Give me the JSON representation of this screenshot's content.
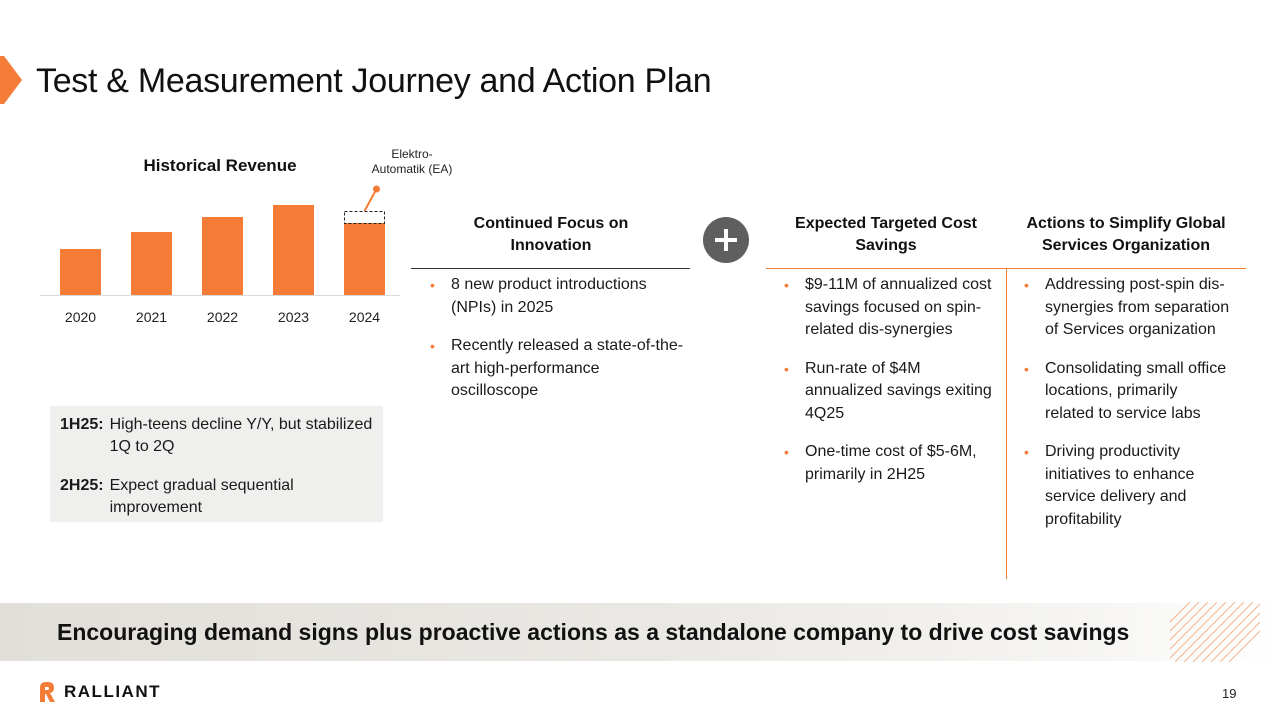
{
  "slide": {
    "title": "Test & Measurement Journey and Action Plan",
    "page_number": "19",
    "accent_color": "#f47c36"
  },
  "chart_data": {
    "type": "bar",
    "title": "Historical Revenue",
    "categories": [
      "2020",
      "2021",
      "2022",
      "2023",
      "2024"
    ],
    "values": [
      46,
      63,
      78,
      90,
      72
    ],
    "annotation": {
      "category": "2024",
      "label_line1": "Elektro-",
      "label_line2": "Automatik (EA)",
      "value_with_ea": 84
    },
    "ylim": [
      0,
      100
    ],
    "xlabel": "",
    "ylabel": ""
  },
  "outlook": [
    {
      "key": "1H25:",
      "text": "High-teens decline Y/Y, but stabilized 1Q to 2Q"
    },
    {
      "key": "2H25:",
      "text": "Expect gradual sequential improvement"
    }
  ],
  "columns": {
    "innovation": {
      "header": "Continued Focus on Innovation",
      "bullets": [
        "8 new product introductions (NPIs) in 2025",
        "Recently released a state-of-the-art high-performance oscilloscope"
      ]
    },
    "cost_savings": {
      "header": "Expected Targeted Cost Savings",
      "bullets": [
        "$9-11M of annualized cost savings focused on spin-related dis-synergies",
        "Run-rate of $4M annualized savings exiting 4Q25",
        "One-time cost of $5-6M, primarily in 2H25"
      ]
    },
    "services": {
      "header": "Actions to Simplify Global Services Organization",
      "bullets": [
        "Addressing post-spin dis-synergies from separation of Services organization",
        "Consolidating small office locations, primarily related to service labs",
        "Driving productivity initiatives to enhance service delivery and profitability"
      ]
    }
  },
  "plus_icon": "plus-icon",
  "banner": {
    "text": "Encouraging demand signs plus proactive actions as a standalone company to drive cost savings"
  },
  "footer": {
    "logo_text": "RALLIANT",
    "logo_icon": "ralliant-logo-icon"
  }
}
